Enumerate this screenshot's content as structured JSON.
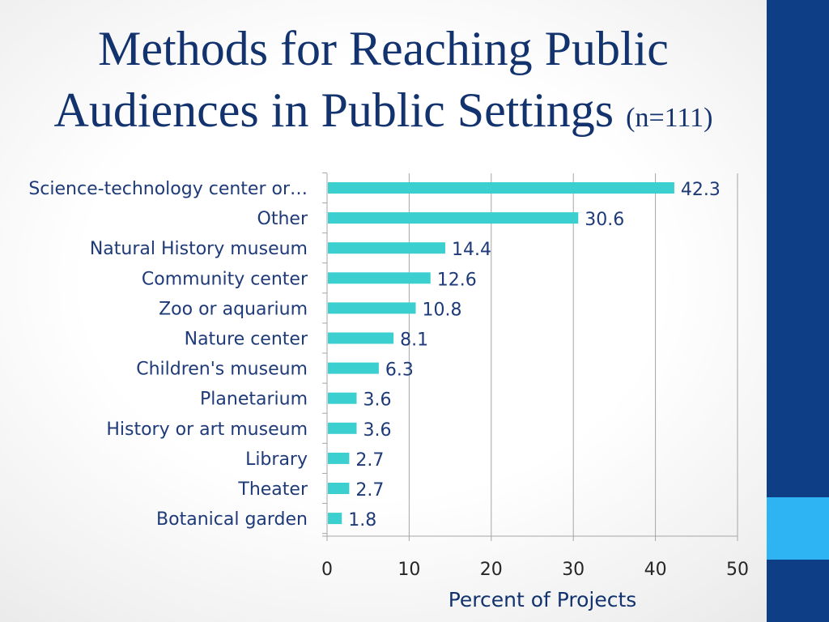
{
  "slide": {
    "title_line1": "Methods for Reaching Public",
    "title_line2": "Audiences in Public Settings",
    "title_n": "(n=111)"
  },
  "colors": {
    "bar": "#3ccfcf",
    "sidebar": "#0e3f86",
    "sidebar_accent": "#2fb4f3",
    "title": "#13336e",
    "gridline": "#a6a6a6"
  },
  "chart_data": {
    "type": "bar",
    "orientation": "horizontal",
    "categories": [
      "Science-technology center or…",
      "Other",
      "Natural History museum",
      "Community center",
      "Zoo or aquarium",
      "Nature center",
      "Children's museum",
      "Planetarium",
      "History or art museum",
      "Library",
      "Theater",
      "Botanical garden"
    ],
    "values": [
      42.3,
      30.6,
      14.4,
      12.6,
      10.8,
      8.1,
      6.3,
      3.6,
      3.6,
      2.7,
      2.7,
      1.8
    ],
    "xlabel": "Percent of Projects",
    "xlim": [
      0,
      50
    ],
    "xticks": [
      "0",
      "10",
      "20",
      "30",
      "40",
      "50"
    ],
    "grid": "vertical",
    "data_labels": true
  }
}
